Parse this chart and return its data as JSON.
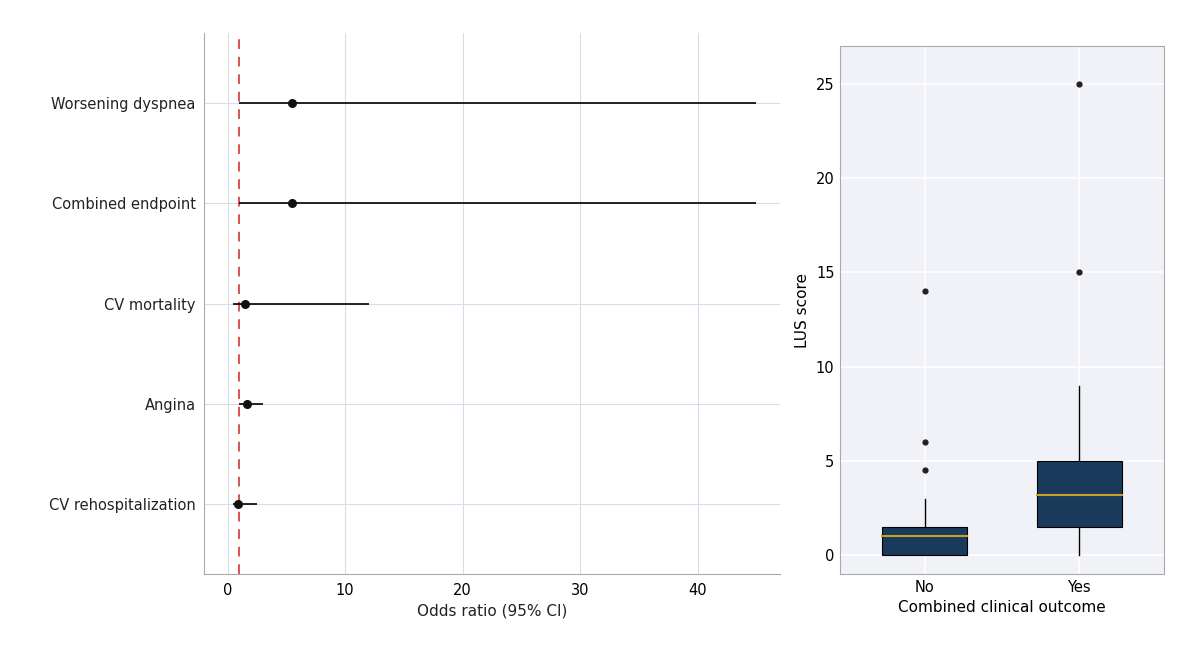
{
  "forest": {
    "labels": [
      "Worsening dyspnea",
      "Combined endpoint",
      "CV mortality",
      "Angina",
      "CV rehospitalization"
    ],
    "or": [
      5.5,
      5.5,
      1.5,
      1.7,
      0.9
    ],
    "ci_low": [
      1.0,
      1.0,
      0.5,
      1.0,
      0.5
    ],
    "ci_high": [
      45.0,
      45.0,
      12.0,
      3.0,
      2.5
    ],
    "xref": 1.0,
    "xlim": [
      -2,
      47
    ],
    "xticks": [
      0,
      10,
      20,
      30,
      40
    ],
    "xlabel": "Odds ratio (95% CI)"
  },
  "boxplot": {
    "no_q1": 0.0,
    "no_median": 1.0,
    "no_q3": 1.5,
    "no_whisker_low": 0.0,
    "no_whisker_high": 3.0,
    "no_outliers": [
      4.5,
      6.0,
      14.0
    ],
    "yes_q1": 1.5,
    "yes_median": 3.2,
    "yes_q3": 5.0,
    "yes_whisker_low": 0.0,
    "yes_whisker_high": 9.0,
    "yes_outliers": [
      15.0,
      25.0
    ],
    "ylim": [
      -1,
      27
    ],
    "yticks": [
      0,
      5,
      10,
      15,
      20,
      25
    ],
    "ylabel": "LUS score",
    "xlabel": "Combined clinical outcome",
    "box_color": "#1a3a5c",
    "median_color": "#c8a028",
    "whisker_color": "#000000",
    "outlier_color": "#222222"
  },
  "forest_bg": "#ffffff",
  "box_bg": "#f0f2f7",
  "grid_color": "#d8dce8",
  "text_color": "#222222"
}
